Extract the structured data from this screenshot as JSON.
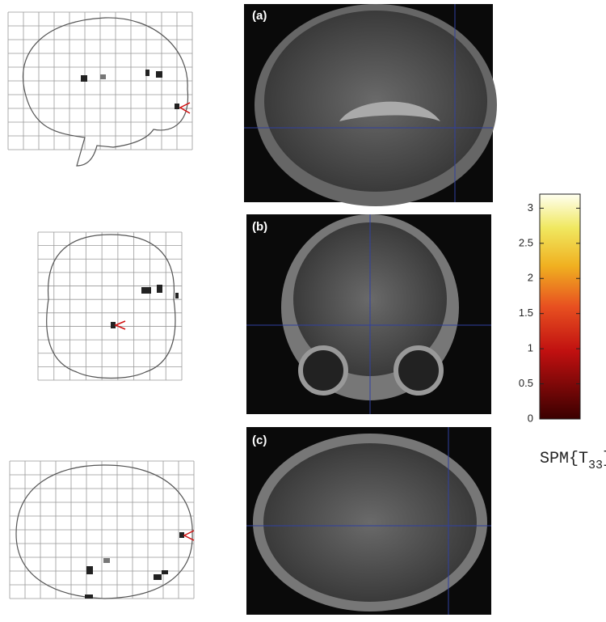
{
  "panels": [
    {
      "label": "(a)"
    },
    {
      "label": "(b)"
    },
    {
      "label": "(c)"
    }
  ],
  "colorbar": {
    "lim": [
      0,
      3.2
    ],
    "ticks": [
      0,
      0.5,
      1,
      1.5,
      2,
      2.5,
      3
    ],
    "title": {
      "prefix": "SPM{T",
      "subscript": "33",
      "suffix": "}"
    }
  }
}
